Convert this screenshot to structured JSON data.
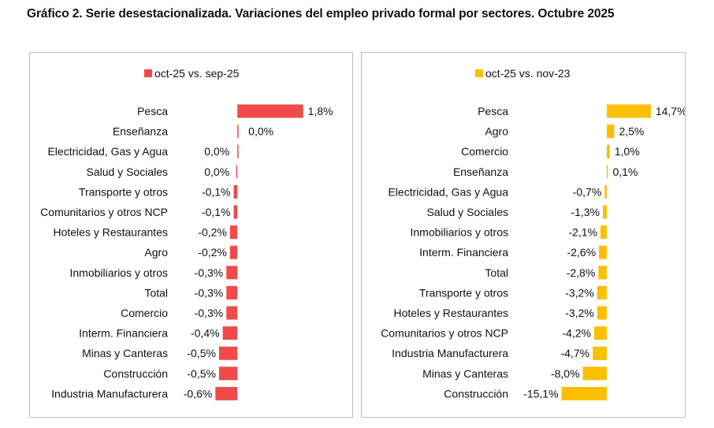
{
  "title": "Gráfico 2. Serie desestacionalizada. Variaciones del empleo privado formal por sectores. Octubre 2025",
  "chart_data": [
    {
      "type": "bar",
      "orientation": "horizontal",
      "legend": "top",
      "grid": false,
      "color": "#f04a4a",
      "series": [
        {
          "name": "oct-25 vs. sep-25",
          "values": [
            1.8,
            0.02,
            0.0,
            -0.02,
            -0.1,
            -0.1,
            -0.2,
            -0.2,
            -0.3,
            -0.3,
            -0.3,
            -0.4,
            -0.5,
            -0.5,
            -0.6
          ]
        }
      ],
      "categories": [
        "Pesca",
        "Enseñanza",
        "Electricidad, Gas y Agua",
        "Salud y Sociales",
        "Transporte y otros",
        "Comunitarios y otros NCP",
        "Hoteles y Restaurantes",
        "Agro",
        "Inmobiliarios y otros",
        "Total",
        "Comercio",
        "Interm. Financiera",
        "Minas y Canteras",
        "Construcción",
        "Industria Manufacturera"
      ],
      "labels": [
        "1,8%",
        "0,0%",
        "0,0%",
        "0,0%",
        "-0,1%",
        "-0,1%",
        "-0,2%",
        "-0,2%",
        "-0,3%",
        "-0,3%",
        "-0,3%",
        "-0,4%",
        "-0,5%",
        "-0,5%",
        "-0,6%"
      ],
      "xlim": [
        -0.65,
        1.85
      ]
    },
    {
      "type": "bar",
      "orientation": "horizontal",
      "legend": "top",
      "grid": false,
      "color": "#fbbf00",
      "series": [
        {
          "name": "oct-25 vs. nov-23",
          "values": [
            14.7,
            2.5,
            1.0,
            0.1,
            -0.7,
            -1.3,
            -2.1,
            -2.6,
            -2.8,
            -3.2,
            -3.2,
            -4.2,
            -4.7,
            -8.0,
            -15.1
          ]
        }
      ],
      "categories": [
        "Pesca",
        "Agro",
        "Comercio",
        "Enseñanza",
        "Electricidad, Gas y Agua",
        "Salud y Sociales",
        "Inmobiliarios y otros",
        "Interm. Financiera",
        "Total",
        "Transporte y otros",
        "Hoteles y Restaurantes",
        "Comunitarios y otros NCP",
        "Industria Manufacturera",
        "Minas y Canteras",
        "Construcción"
      ],
      "labels": [
        "14,7%",
        "2,5%",
        "1,0%",
        "0,1%",
        "-0,7%",
        "-1,3%",
        "-2,1%",
        "-2,6%",
        "-2,8%",
        "-3,2%",
        "-3,2%",
        "-4,2%",
        "-4,7%",
        "-8,0%",
        "-15,1%"
      ],
      "xlim": [
        -15.5,
        15.0
      ]
    }
  ]
}
